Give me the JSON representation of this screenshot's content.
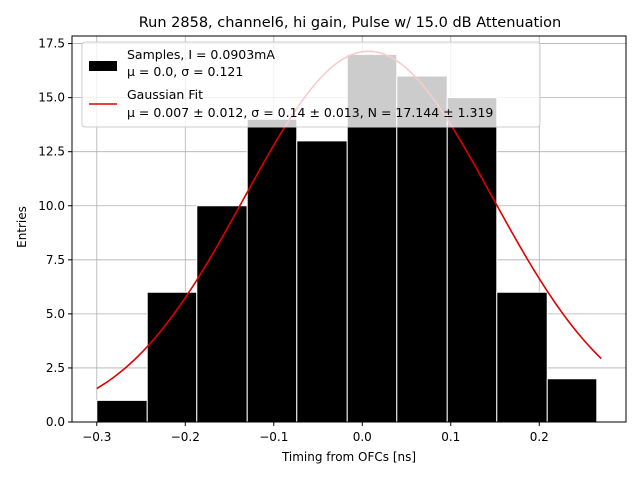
{
  "chart_data": {
    "type": "bar",
    "title": "Run 2858, channel6, hi gain, Pulse w/ 15.0 dB Attenuation",
    "xlabel": "Timing from OFCs [ns]",
    "ylabel": "Entries",
    "xlim": [
      -0.328,
      0.298
    ],
    "ylim": [
      0,
      17.85
    ],
    "grid": true,
    "legend_position": "upper-left",
    "xticks": [
      -0.3,
      -0.2,
      -0.1,
      0.0,
      0.1,
      0.2
    ],
    "xtick_labels": [
      "−0.3",
      "−0.2",
      "−0.1",
      "0.0",
      "0.1",
      "0.2"
    ],
    "yticks": [
      0,
      2.5,
      5,
      7.5,
      10,
      12.5,
      15,
      17.5
    ],
    "ytick_labels": [
      "0.0",
      "2.5",
      "5.0",
      "7.5",
      "10.0",
      "12.5",
      "15.0",
      "17.5"
    ],
    "histogram": {
      "name": "Samples, I = 0.0903mA",
      "stats_label": "μ = 0.0, σ = 0.121",
      "bin_edges": [
        -0.3,
        -0.243,
        -0.187,
        -0.13,
        -0.074,
        -0.017,
        0.039,
        0.096,
        0.152,
        0.209,
        0.265
      ],
      "counts": [
        1,
        6,
        10,
        14,
        13,
        17,
        16,
        15,
        6,
        2
      ],
      "color": "#000000"
    },
    "fit": {
      "name": "Gaussian Fit",
      "params_label": "μ = 0.007 ± 0.012, σ = 0.14 ± 0.013, N = 17.144 ± 1.319",
      "mu": 0.007,
      "sigma": 0.14,
      "N": 17.144,
      "x_range": [
        -0.3,
        0.27
      ],
      "color": "#e00000"
    }
  }
}
